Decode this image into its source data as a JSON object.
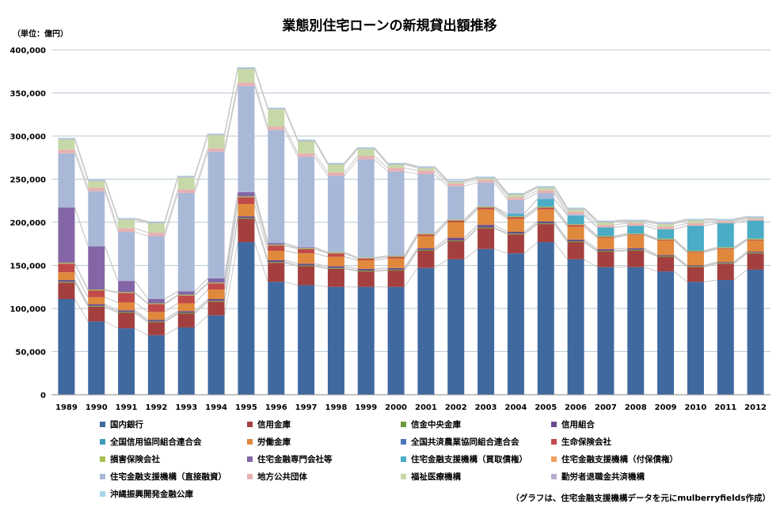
{
  "chart_data": {
    "type": "bar",
    "stacked": true,
    "title": "業態別住宅ローンの新規貸出額推移",
    "unit_label": "（単位：億円）",
    "note": "（グラフは、住宅金融支援機構データを元にmulberryfields作成）",
    "ylim": [
      0,
      400000
    ],
    "yticks": [
      "0",
      "50,000",
      "100,000",
      "150,000",
      "200,000",
      "250,000",
      "300,000",
      "350,000",
      "400,000"
    ],
    "grid": true,
    "legend_position": "bottom",
    "categories": [
      "1989",
      "1990",
      "1991",
      "1992",
      "1993",
      "1994",
      "1995",
      "1996",
      "1997",
      "1998",
      "1999",
      "2000",
      "2001",
      "2002",
      "2003",
      "2004",
      "2005",
      "2006",
      "2007",
      "2008",
      "2009",
      "2010",
      "2011",
      "2012"
    ],
    "series": [
      {
        "name": "国内銀行",
        "color": "#4069a0",
        "values": [
          111000,
          85000,
          77000,
          69000,
          78000,
          92000,
          177000,
          131000,
          127000,
          125000,
          125000,
          125000,
          147000,
          157000,
          169000,
          164000,
          177000,
          157000,
          148000,
          148000,
          143000,
          131000,
          133000,
          145000
        ]
      },
      {
        "name": "信用金庫",
        "color": "#a3403f",
        "values": [
          19000,
          17000,
          18000,
          15000,
          16000,
          16000,
          27000,
          22000,
          22000,
          21000,
          18000,
          19000,
          20000,
          21000,
          24000,
          22000,
          21000,
          20000,
          18000,
          19000,
          17000,
          17000,
          19000,
          19000
        ]
      },
      {
        "name": "信金中央金庫",
        "color": "#6f9a3b",
        "values": [
          1000,
          1000,
          1000,
          1000,
          1000,
          1000,
          1000,
          1000,
          1000,
          1000,
          1000,
          1000,
          1000,
          1000,
          1000,
          1000,
          1000,
          1000,
          1000,
          1000,
          1000,
          1000,
          1000,
          1000
        ]
      },
      {
        "name": "信用組合",
        "color": "#6a4c8e",
        "values": [
          2000,
          2000,
          2000,
          2000,
          2000,
          2000,
          2000,
          2000,
          2000,
          2000,
          2000,
          2000,
          2000,
          3000,
          3000,
          2000,
          2000,
          2000,
          2000,
          2000,
          1000,
          1000,
          1000,
          1000
        ]
      },
      {
        "name": "全国信用協同組合連合会",
        "color": "#3d9aba",
        "values": [
          0,
          0,
          0,
          0,
          0,
          0,
          0,
          0,
          0,
          0,
          0,
          0,
          0,
          0,
          0,
          0,
          0,
          0,
          0,
          0,
          0,
          0,
          0,
          0
        ]
      },
      {
        "name": "労働金庫",
        "color": "#e0893c",
        "values": [
          9000,
          8000,
          9000,
          9000,
          9000,
          11000,
          14000,
          11000,
          12000,
          11000,
          10000,
          11000,
          14000,
          18000,
          18000,
          15000,
          14000,
          15000,
          13000,
          15000,
          17000,
          15000,
          15000,
          13000
        ]
      },
      {
        "name": "全国共済農業協同組合連合会",
        "color": "#4a78b8",
        "values": [
          0,
          0,
          0,
          0,
          0,
          0,
          0,
          0,
          0,
          0,
          0,
          0,
          0,
          0,
          0,
          0,
          0,
          0,
          0,
          0,
          0,
          0,
          0,
          0
        ]
      },
      {
        "name": "生命保険会社",
        "color": "#c04a4a",
        "values": [
          10000,
          8000,
          11000,
          9000,
          9000,
          7000,
          8000,
          6000,
          5000,
          4000,
          2000,
          2000,
          2000,
          2000,
          2000,
          2000,
          2000,
          2000,
          1000,
          1000,
          1000,
          1000,
          1000,
          1000
        ]
      },
      {
        "name": "損害保険会社",
        "color": "#a7bf52",
        "values": [
          1000,
          1000,
          1000,
          1000,
          1000,
          1000,
          1000,
          1000,
          1000,
          1000,
          1000,
          1000,
          1000,
          1000,
          1000,
          1000,
          1000,
          1000,
          1000,
          1000,
          1000,
          1000,
          1000,
          1000
        ]
      },
      {
        "name": "住宅金融専門会社等",
        "color": "#8466a6",
        "values": [
          64000,
          50000,
          13000,
          5000,
          4000,
          5000,
          5000,
          2000,
          1000,
          0,
          0,
          0,
          0,
          0,
          0,
          0,
          0,
          0,
          0,
          0,
          0,
          0,
          0,
          0
        ]
      },
      {
        "name": "住宅金融支援機構（買取債権）",
        "color": "#4bacc6",
        "values": [
          0,
          0,
          0,
          0,
          0,
          0,
          0,
          0,
          0,
          0,
          0,
          0,
          0,
          0,
          0,
          3000,
          9000,
          10000,
          10000,
          9000,
          11000,
          29000,
          28000,
          21000
        ]
      },
      {
        "name": "住宅金融支援機構（付保債権）",
        "color": "#f0a060",
        "values": [
          0,
          0,
          0,
          0,
          0,
          0,
          0,
          0,
          0,
          0,
          0,
          0,
          0,
          0,
          0,
          0,
          0,
          0,
          0,
          0,
          0,
          0,
          0,
          0
        ]
      },
      {
        "name": "住宅金融支援機構（直接融資）",
        "color": "#aab8d8",
        "values": [
          63000,
          64000,
          57000,
          73000,
          114000,
          147000,
          123000,
          131000,
          105000,
          89000,
          114000,
          98000,
          69000,
          39000,
          28000,
          16000,
          7000,
          1000,
          0,
          0,
          0,
          0,
          0,
          0
        ]
      },
      {
        "name": "地方公共団体",
        "color": "#e8b0b2",
        "values": [
          4000,
          4000,
          4000,
          4000,
          4000,
          4000,
          4000,
          4000,
          4000,
          4000,
          4000,
          4000,
          4000,
          3000,
          3000,
          3000,
          3000,
          3000,
          3000,
          3000,
          3000,
          3000,
          2000,
          2000
        ]
      },
      {
        "name": "福祉医療機構",
        "color": "#c7d8a8",
        "values": [
          12000,
          8000,
          10000,
          11000,
          14000,
          15000,
          16000,
          20000,
          14000,
          9000,
          8000,
          4000,
          3000,
          2000,
          2000,
          3000,
          3000,
          3000,
          3000,
          2000,
          3000,
          3000,
          1000,
          1000
        ]
      },
      {
        "name": "勤労者退職金共済機構",
        "color": "#b8adcc",
        "values": [
          1000,
          1000,
          1000,
          1000,
          1000,
          1000,
          1000,
          1000,
          1000,
          1000,
          1000,
          1000,
          1000,
          1000,
          1000,
          1000,
          1000,
          1000,
          1000,
          1000,
          1000,
          1000,
          1000,
          1000
        ]
      },
      {
        "name": "沖縄振興開発金融公庫",
        "color": "#a6d4e6",
        "values": [
          1000,
          1000,
          1000,
          1000,
          1000,
          1000,
          1000,
          1000,
          1000,
          1000,
          1000,
          1000,
          1000,
          1000,
          1000,
          1000,
          1000,
          1000,
          1000,
          1000,
          1000,
          1000,
          1000,
          1000
        ]
      }
    ]
  }
}
